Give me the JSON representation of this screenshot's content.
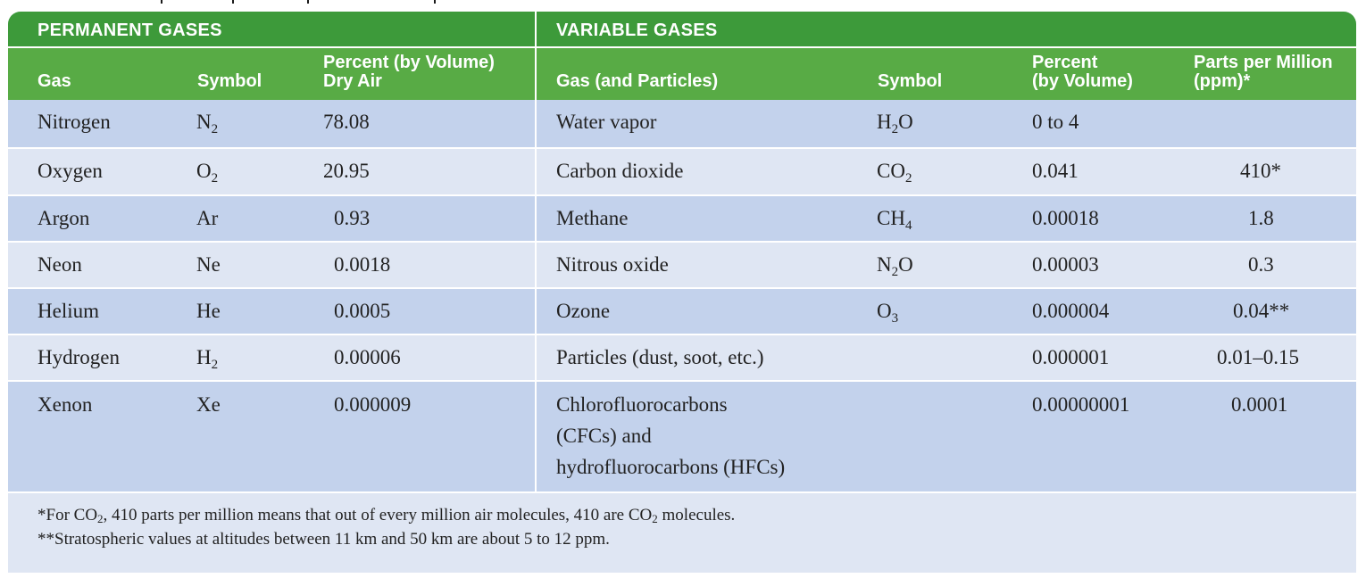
{
  "sections": {
    "permanent": "PERMANENT GASES",
    "variable": "VARIABLE GASES"
  },
  "permanent_headers": {
    "gas": "Gas",
    "symbol": "Symbol",
    "percent_line1": "Percent (by Volume)",
    "percent_line2": "Dry Air"
  },
  "variable_headers": {
    "gas": "Gas (and Particles)",
    "symbol": "Symbol",
    "percent_line1": "Percent",
    "percent_line2": "(by Volume)",
    "ppm_line1": "Parts per Million",
    "ppm_line2": "(ppm)*"
  },
  "permanent_rows": [
    {
      "gas": "Nitrogen",
      "sym": "N",
      "sub": "2",
      "percent": "78.08"
    },
    {
      "gas": "Oxygen",
      "sym": "O",
      "sub": "2",
      "percent": "20.95"
    },
    {
      "gas": "Argon",
      "sym": "Ar",
      "sub": "",
      "percent": "0.93"
    },
    {
      "gas": "Neon",
      "sym": "Ne",
      "sub": "",
      "percent": "0.0018"
    },
    {
      "gas": "Helium",
      "sym": "He",
      "sub": "",
      "percent": "0.0005"
    },
    {
      "gas": "Hydrogen",
      "sym": "H",
      "sub": "2",
      "percent": "0.00006"
    },
    {
      "gas": "Xenon",
      "sym": "Xe",
      "sub": "",
      "percent": "0.000009"
    }
  ],
  "variable_rows": [
    {
      "gas": "Water vapor",
      "sym_a": "H",
      "sub": "2",
      "sym_b": "O",
      "percent": "0 to 4",
      "ppm": ""
    },
    {
      "gas": "Carbon dioxide",
      "sym_a": "CO",
      "sub": "2",
      "sym_b": "",
      "percent": "0.041",
      "ppm": "410*"
    },
    {
      "gas": "Methane",
      "sym_a": "CH",
      "sub": "4",
      "sym_b": "",
      "percent": "0.00018",
      "ppm": "1.8"
    },
    {
      "gas": "Nitrous oxide",
      "sym_a": "N",
      "sub": "2",
      "sym_b": "O",
      "percent": "0.00003",
      "ppm": "0.3"
    },
    {
      "gas": "Ozone",
      "sym_a": "O",
      "sub": "3",
      "sym_b": "",
      "percent": "0.000004",
      "ppm": "0.04**"
    },
    {
      "gas": "Particles (dust, soot, etc.)",
      "sym_a": "",
      "sub": "",
      "sym_b": "",
      "percent": "0.000001",
      "ppm": "0.01–0.15"
    },
    {
      "gas_lines": [
        "Chlorofluorocarbons",
        "(CFCs) and",
        "hydrofluorocarbons (HFCs)"
      ],
      "sym_a": "",
      "sub": "",
      "sym_b": "",
      "percent": "0.00000001",
      "ppm": "0.0001"
    }
  ],
  "footnotes": {
    "note1_a": "*For CO",
    "note1_sub": "2",
    "note1_b": ", 410 parts per million means that out of every million air molecules, 410 are CO",
    "note1_sub2": "2",
    "note1_c": " molecules.",
    "note2": "**Stratospheric values at altitudes between 11 km and 50 km are about 5 to 12 ppm."
  }
}
